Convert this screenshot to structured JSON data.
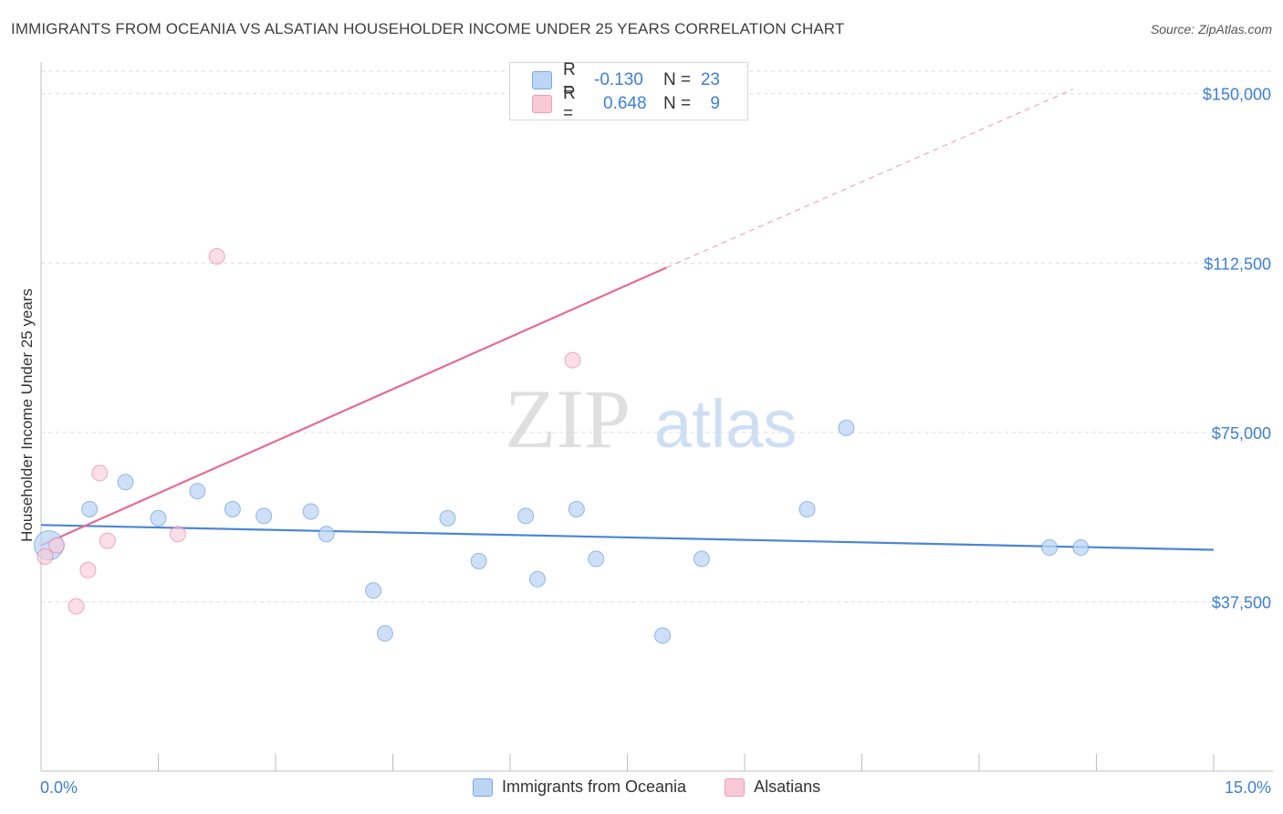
{
  "header": {
    "title": "IMMIGRANTS FROM OCEANIA VS ALSATIAN HOUSEHOLDER INCOME UNDER 25 YEARS CORRELATION CHART",
    "source": "Source: ZipAtlas.com"
  },
  "watermark": {
    "zip": "ZIP",
    "atlas": "atlas"
  },
  "legend": {
    "rows": [
      {
        "r_label": "R =",
        "r_value": "-0.130",
        "n_label": "N =",
        "n_value": "23",
        "color": "#a9c8f0"
      },
      {
        "r_label": "R =",
        "r_value": "0.648",
        "n_label": "N =",
        "n_value": "9",
        "color": "#f6b8cb"
      }
    ]
  },
  "bottom_legend": {
    "items": [
      {
        "label": "Immigrants from Oceania",
        "color": "#a9c8f0"
      },
      {
        "label": "Alsatians",
        "color": "#f6b8cb"
      }
    ]
  },
  "chart_data": {
    "type": "scatter",
    "title": "IMMIGRANTS FROM OCEANIA VS ALSATIAN HOUSEHOLDER INCOME UNDER 25 YEARS CORRELATION CHART",
    "xlabel": "",
    "ylabel": "Householder Income Under 25 years",
    "xlim": [
      0,
      15
    ],
    "ylim": [
      0,
      155000
    ],
    "x_tick_labels": [
      "0.0%",
      "15.0%"
    ],
    "y_ticks": [
      37500,
      75000,
      112500,
      150000
    ],
    "y_tick_labels": [
      "$37,500",
      "$75,000",
      "$112,500",
      "$150,000"
    ],
    "grid": true,
    "series": [
      {
        "name": "Immigrants from Oceania",
        "color": "#4a86d6",
        "fill": "#bcd5f4",
        "points": [
          [
            0.1,
            50000
          ],
          [
            0.62,
            58000
          ],
          [
            1.08,
            64000
          ],
          [
            1.5,
            56000
          ],
          [
            2.0,
            62000
          ],
          [
            2.45,
            58000
          ],
          [
            2.85,
            56500
          ],
          [
            3.45,
            57500
          ],
          [
            3.65,
            52500
          ],
          [
            4.25,
            40000
          ],
          [
            4.4,
            30500
          ],
          [
            5.2,
            56000
          ],
          [
            5.6,
            46500
          ],
          [
            6.2,
            56500
          ],
          [
            6.35,
            42500
          ],
          [
            6.85,
            58000
          ],
          [
            7.1,
            47000
          ],
          [
            7.95,
            30000
          ],
          [
            8.45,
            47000
          ],
          [
            9.8,
            58000
          ],
          [
            10.3,
            76000
          ],
          [
            12.9,
            49500
          ],
          [
            13.3,
            49500
          ]
        ],
        "trend": {
          "x": [
            0.0,
            15.0
          ],
          "y": [
            54500,
            49000
          ]
        }
      },
      {
        "name": "Alsatians",
        "color": "#e66a93",
        "fill": "#f9c9d8",
        "points": [
          [
            0.05,
            47500
          ],
          [
            0.2,
            50000
          ],
          [
            0.45,
            36500
          ],
          [
            0.6,
            44500
          ],
          [
            0.75,
            66000
          ],
          [
            0.85,
            51000
          ],
          [
            1.75,
            52500
          ],
          [
            2.25,
            114000
          ],
          [
            6.8,
            91000
          ]
        ],
        "trend": {
          "x": [
            0.0,
            8.0
          ],
          "y": [
            50000,
            111500
          ]
        },
        "trend_extension": {
          "x": [
            8.0,
            13.2
          ],
          "y": [
            111500,
            151000
          ]
        }
      }
    ]
  }
}
